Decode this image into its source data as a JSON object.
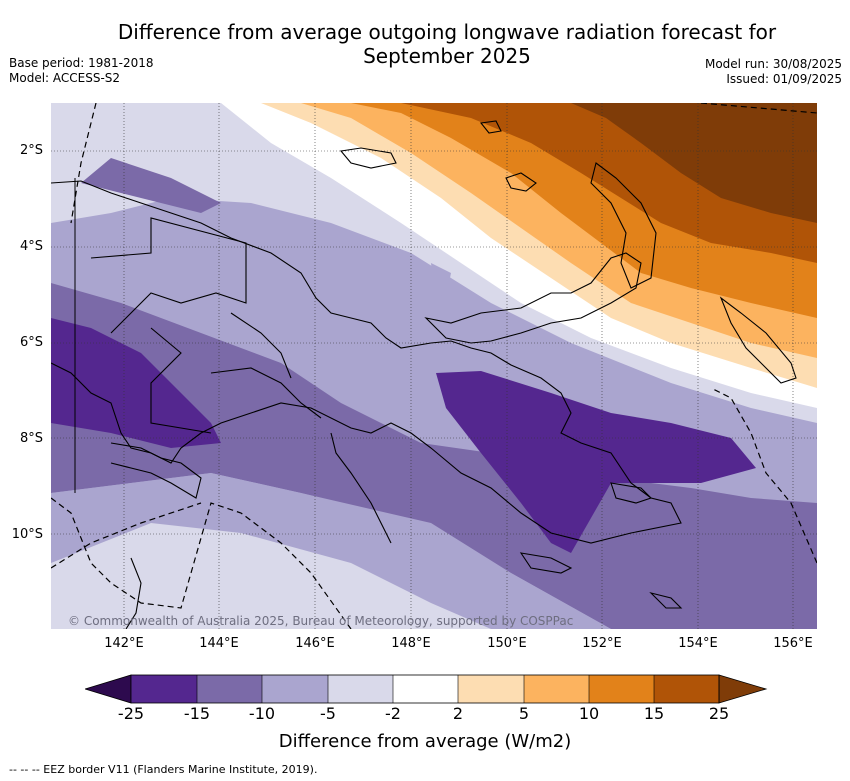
{
  "title": {
    "line1": "Difference from average outgoing longwave radiation forecast for",
    "line2": "September 2025"
  },
  "meta_left": {
    "base_period": "Base period: 1981-2018",
    "model": "Model: ACCESS-S2"
  },
  "meta_right": {
    "model_run": "Model run: 30/08/2025",
    "issued": "Issued: 01/09/2025"
  },
  "map": {
    "lat_labels": [
      "2°S",
      "4°S",
      "6°S",
      "8°S",
      "10°S"
    ],
    "lon_labels": [
      "142°E",
      "144°E",
      "146°E",
      "148°E",
      "150°E",
      "152°E",
      "154°E",
      "156°E"
    ],
    "copyright": "© Commonwealth of Australia 2025, Bureau of Meteorology, supported by COSPPac",
    "palette": {
      "purple_darkest": "#2d0a4e",
      "purple_dark": "#54278f",
      "purple_mid": "#7b6aa8",
      "purple_light": "#aaa5cf",
      "purple_pale": "#d9d9ea",
      "white": "#ffffff",
      "orange_pale": "#fdddb2",
      "orange_light": "#fcb35f",
      "orange_mid": "#e2821a",
      "orange_dark": "#b05407",
      "brown_dark": "#7f3c08"
    }
  },
  "colorbar": {
    "ticks": [
      "-25",
      "-15",
      "-10",
      "-5",
      "-2",
      "2",
      "5",
      "10",
      "15",
      "25"
    ],
    "label": "Difference from average (W/m2)"
  },
  "legend_note": "-- -- -- EEZ border V11 (Flanders Marine Institute, 2019)."
}
